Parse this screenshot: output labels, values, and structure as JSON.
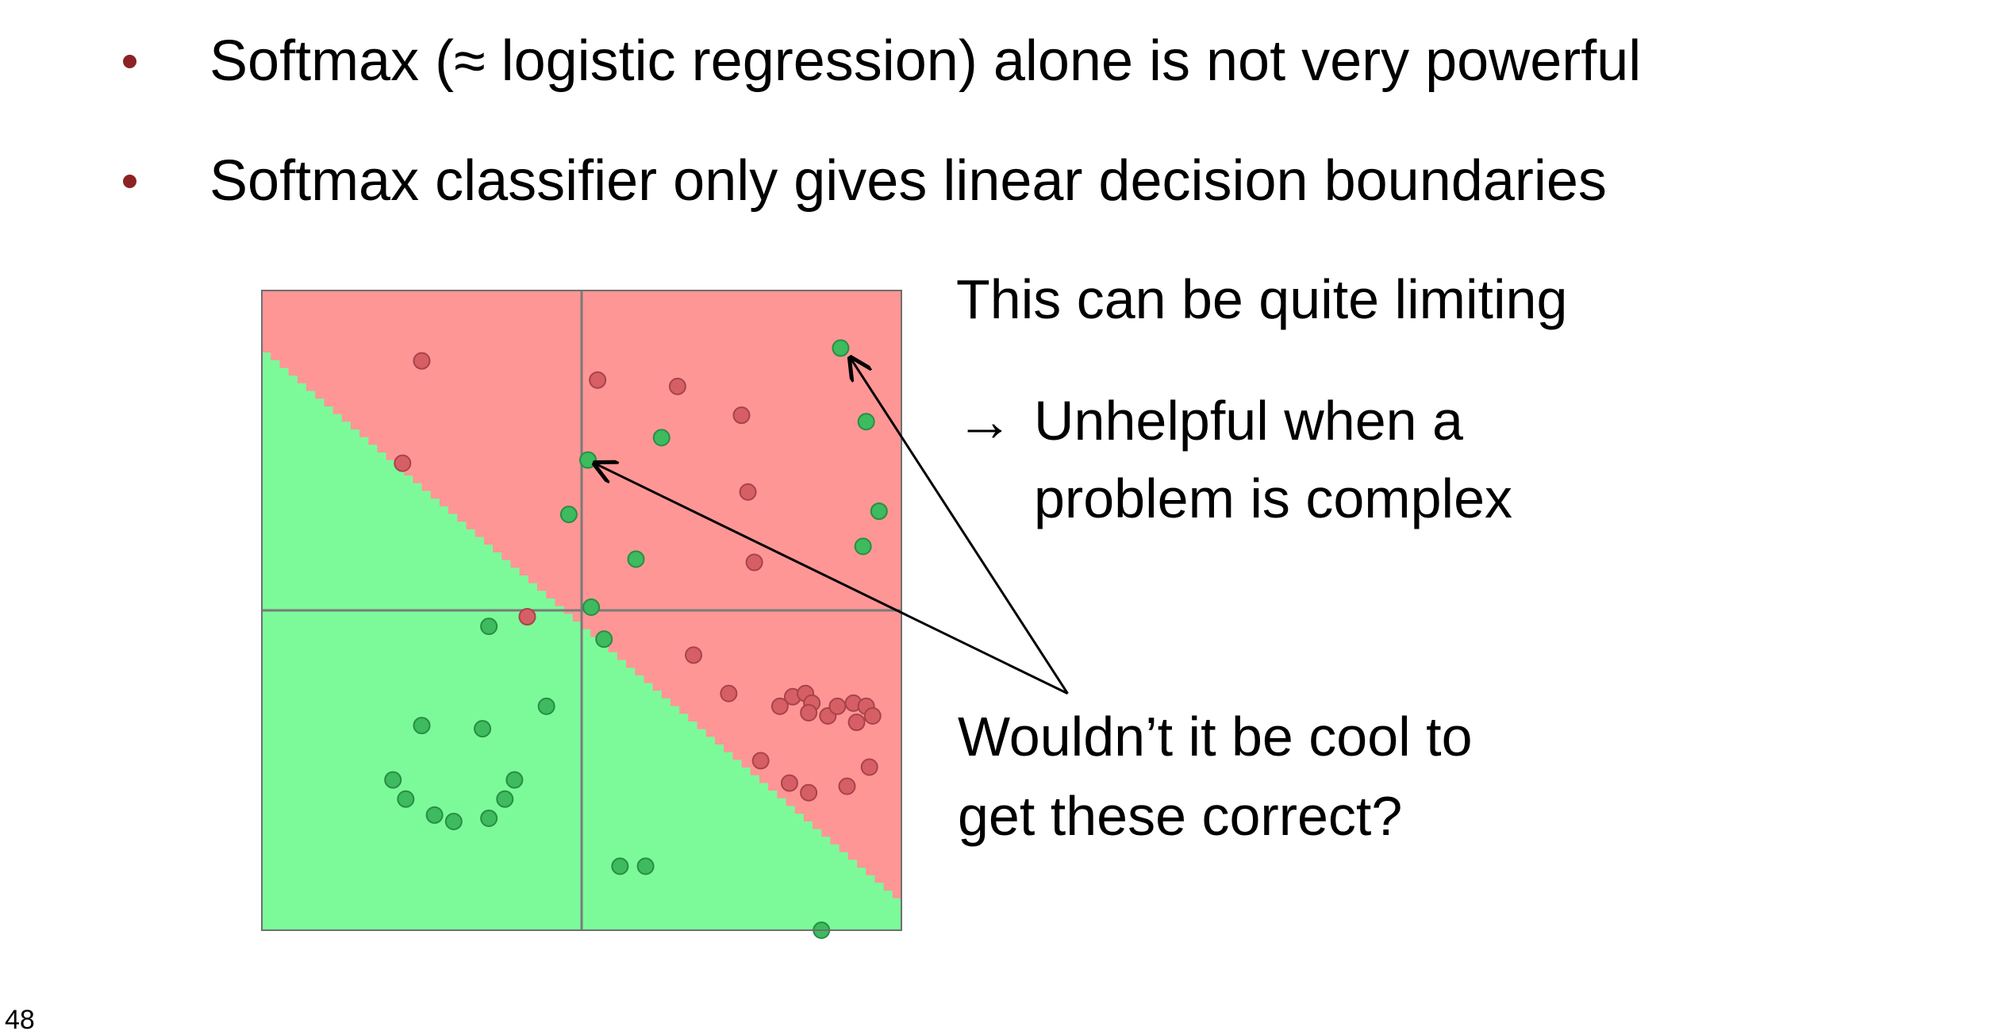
{
  "bullets": [
    "Softmax (≈ logistic regression) alone is not very powerful",
    "Softmax classifier only gives linear decision boundaries"
  ],
  "side_text": {
    "limiting": "This can be quite limiting",
    "arrow_glyph": "→",
    "unhelpful_line1": "Unhelpful when a",
    "unhelpful_line2": "problem is complex",
    "cool_line1": "Wouldn’t it be cool to",
    "cool_line2": "get these correct?"
  },
  "page_number": "48",
  "colors": {
    "bullet": "#8b2323",
    "red_region": "#ff9696",
    "green_region": "#7cfa9a",
    "red_point": "#d65f66",
    "green_point": "#3dbb5e",
    "axis": "#7a7a7a",
    "frame": "#6f6f6f"
  },
  "chart_data": {
    "type": "scatter",
    "title": "",
    "xlabel": "",
    "ylabel": "",
    "xlim": [
      -1,
      1
    ],
    "ylim": [
      -1,
      1
    ],
    "decision_boundary": {
      "kind": "linear",
      "points": [
        [
          -1,
          0.83
        ],
        [
          1,
          -0.9
        ]
      ]
    },
    "regions": [
      {
        "side": "upper-right",
        "color_key": "red_region"
      },
      {
        "side": "lower-left",
        "color_key": "green_region"
      }
    ],
    "series": [
      {
        "class": "red",
        "x": [
          -0.5,
          -0.17,
          -0.56,
          0.05,
          0.3,
          0.5,
          0.52,
          0.54,
          0.35,
          0.46,
          0.62,
          0.66,
          0.7,
          0.72,
          0.71,
          0.77,
          0.8,
          0.85,
          0.89,
          0.91,
          0.86,
          0.83,
          0.9,
          0.56,
          0.65,
          0.71
        ],
        "y": [
          0.78,
          -0.02,
          0.46,
          0.72,
          0.7,
          0.61,
          0.37,
          0.15,
          -0.14,
          -0.26,
          -0.3,
          -0.27,
          -0.26,
          -0.29,
          -0.32,
          -0.33,
          -0.3,
          -0.29,
          -0.3,
          -0.33,
          -0.35,
          -0.55,
          -0.49,
          -0.47,
          -0.54,
          -0.57
        ]
      },
      {
        "class": "green",
        "x": [
          0.81,
          0.89,
          0.02,
          0.25,
          0.93,
          -0.04,
          0.88,
          0.17,
          0.03,
          0.07,
          -0.29,
          -0.11,
          -0.5,
          -0.31,
          -0.59,
          -0.55,
          -0.46,
          -0.4,
          -0.29,
          -0.24,
          -0.21,
          0.12,
          0.2,
          0.75
        ],
        "y": [
          0.82,
          0.59,
          0.47,
          0.54,
          0.31,
          0.3,
          0.2,
          0.16,
          0.01,
          -0.09,
          -0.05,
          -0.3,
          -0.36,
          -0.37,
          -0.53,
          -0.59,
          -0.64,
          -0.66,
          -0.65,
          -0.59,
          -0.53,
          -0.8,
          -0.8,
          -1.0
        ]
      }
    ],
    "annotations": [
      {
        "from": [
          1.52,
          -0.26
        ],
        "to": [
          0.04,
          0.46
        ]
      },
      {
        "from": [
          1.52,
          -0.26
        ],
        "to": [
          0.84,
          0.79
        ]
      }
    ]
  }
}
